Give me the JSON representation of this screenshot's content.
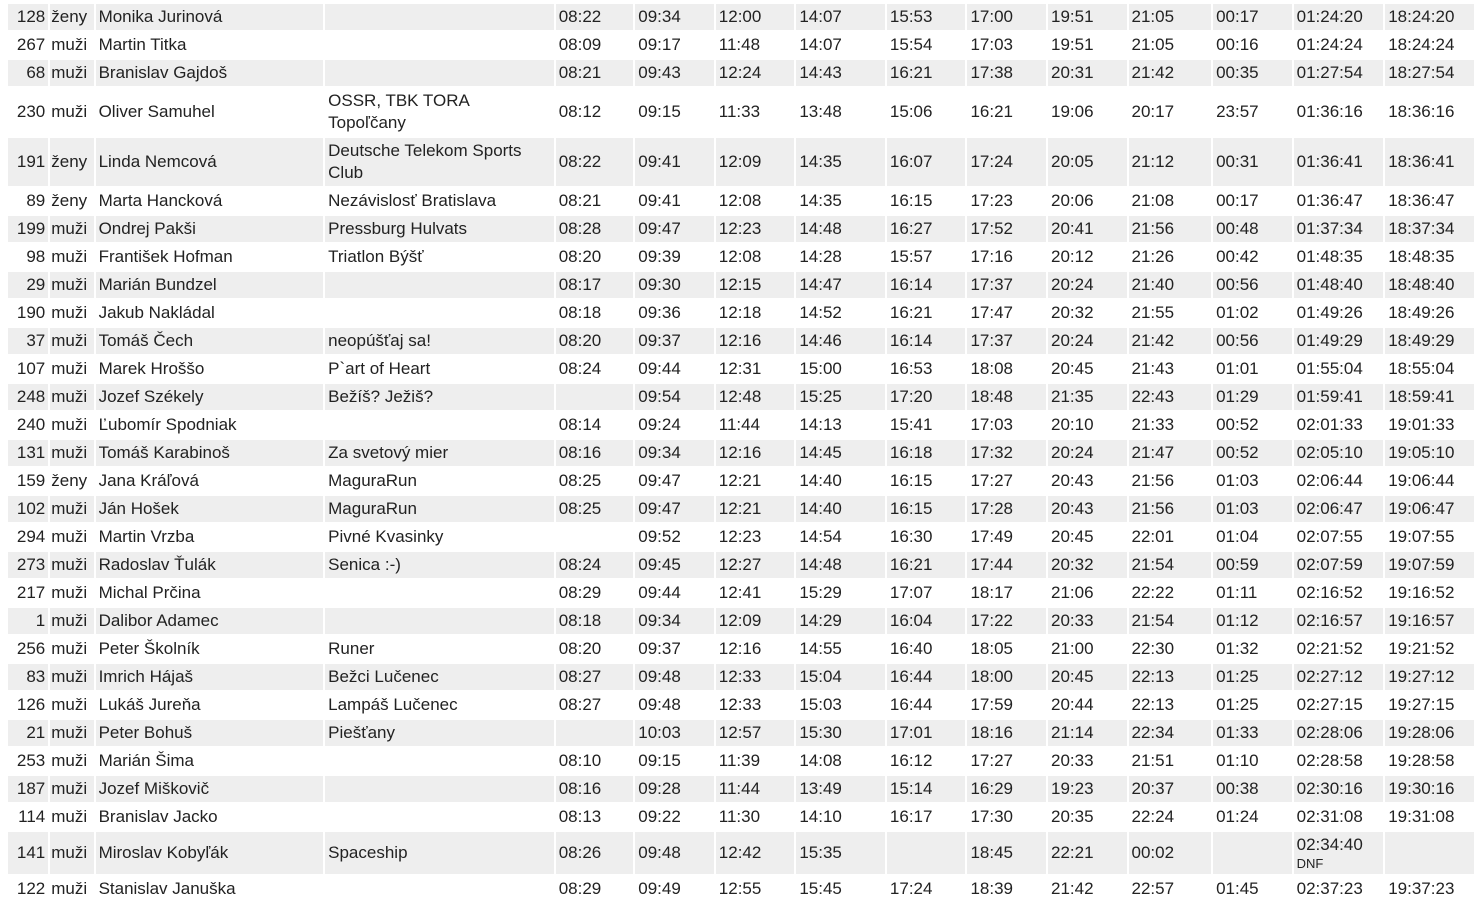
{
  "table": {
    "rows": [
      [
        "128",
        "ženy",
        "Monika Jurinová",
        null,
        "08:22",
        "09:34",
        "12:00",
        "14:07",
        "15:53",
        "17:00",
        "19:51",
        "21:05",
        "00:17",
        "01:24:20",
        "18:24:20"
      ],
      [
        "267",
        "muži",
        "Martin Titka",
        null,
        "08:09",
        "09:17",
        "11:48",
        "14:07",
        "15:54",
        "17:03",
        "19:51",
        "21:05",
        "00:16",
        "01:24:24",
        "18:24:24"
      ],
      [
        "68",
        "muži",
        "Branislav Gajdoš",
        null,
        "08:21",
        "09:43",
        "12:24",
        "14:43",
        "16:21",
        "17:38",
        "20:31",
        "21:42",
        "00:35",
        "01:27:54",
        "18:27:54"
      ],
      [
        "230",
        "muži",
        "Oliver Samuhel",
        "OSSR, TBK TORA Topoľčany",
        "08:12",
        "09:15",
        "11:33",
        "13:48",
        "15:06",
        "16:21",
        "19:06",
        "20:17",
        "23:57",
        "01:36:16",
        "18:36:16"
      ],
      [
        "191",
        "ženy",
        "Linda Nemcová",
        "Deutsche Telekom Sports Club",
        "08:22",
        "09:41",
        "12:09",
        "14:35",
        "16:07",
        "17:24",
        "20:05",
        "21:12",
        "00:31",
        "01:36:41",
        "18:36:41"
      ],
      [
        "89",
        "ženy",
        "Marta Hancková",
        "Nezávislosť Bratislava",
        "08:21",
        "09:41",
        "12:08",
        "14:35",
        "16:15",
        "17:23",
        "20:06",
        "21:08",
        "00:17",
        "01:36:47",
        "18:36:47"
      ],
      [
        "199",
        "muži",
        "Ondrej Pakši",
        "Pressburg Hulvats",
        "08:28",
        "09:47",
        "12:23",
        "14:48",
        "16:27",
        "17:52",
        "20:41",
        "21:56",
        "00:48",
        "01:37:34",
        "18:37:34"
      ],
      [
        "98",
        "muži",
        "František Hofman",
        "Triatlon Býšť",
        "08:20",
        "09:39",
        "12:08",
        "14:28",
        "15:57",
        "17:16",
        "20:12",
        "21:26",
        "00:42",
        "01:48:35",
        "18:48:35"
      ],
      [
        "29",
        "muži",
        "Marián Bundzel",
        null,
        "08:17",
        "09:30",
        "12:15",
        "14:47",
        "16:14",
        "17:37",
        "20:24",
        "21:40",
        "00:56",
        "01:48:40",
        "18:48:40"
      ],
      [
        "190",
        "muži",
        "Jakub Nakládal",
        null,
        "08:18",
        "09:36",
        "12:18",
        "14:52",
        "16:21",
        "17:47",
        "20:32",
        "21:55",
        "01:02",
        "01:49:26",
        "18:49:26"
      ],
      [
        "37",
        "muži",
        "Tomáš Čech",
        "neopúšťaj sa!",
        "08:20",
        "09:37",
        "12:16",
        "14:46",
        "16:14",
        "17:37",
        "20:24",
        "21:42",
        "00:56",
        "01:49:29",
        "18:49:29"
      ],
      [
        "107",
        "muži",
        "Marek Hroššo",
        "P`art of Heart",
        "08:24",
        "09:44",
        "12:31",
        "15:00",
        "16:53",
        "18:08",
        "20:45",
        "21:43",
        "01:01",
        "01:55:04",
        "18:55:04"
      ],
      [
        "248",
        "muži",
        "Jozef Székely",
        "Bežíš? Ježiš?",
        null,
        "09:54",
        "12:48",
        "15:25",
        "17:20",
        "18:48",
        "21:35",
        "22:43",
        "01:29",
        "01:59:41",
        "18:59:41"
      ],
      [
        "240",
        "muži",
        "Ľubomír Spodniak",
        null,
        "08:14",
        "09:24",
        "11:44",
        "14:13",
        "15:41",
        "17:03",
        "20:10",
        "21:33",
        "00:52",
        "02:01:33",
        "19:01:33"
      ],
      [
        "131",
        "muži",
        "Tomáš Karabinoš",
        "Za svetový mier",
        "08:16",
        "09:34",
        "12:16",
        "14:45",
        "16:18",
        "17:32",
        "20:24",
        "21:47",
        "00:52",
        "02:05:10",
        "19:05:10"
      ],
      [
        "159",
        "ženy",
        "Jana Kráľová",
        "MaguraRun",
        "08:25",
        "09:47",
        "12:21",
        "14:40",
        "16:15",
        "17:27",
        "20:43",
        "21:56",
        "01:03",
        "02:06:44",
        "19:06:44"
      ],
      [
        "102",
        "muži",
        "Ján Hošek",
        "MaguraRun",
        "08:25",
        "09:47",
        "12:21",
        "14:40",
        "16:15",
        "17:28",
        "20:43",
        "21:56",
        "01:03",
        "02:06:47",
        "19:06:47"
      ],
      [
        "294",
        "muži",
        "Martin Vrzba",
        "Pivné Kvasinky",
        null,
        "09:52",
        "12:23",
        "14:54",
        "16:30",
        "17:49",
        "20:45",
        "22:01",
        "01:04",
        "02:07:55",
        "19:07:55"
      ],
      [
        "273",
        "muži",
        "Radoslav Ťulák",
        "Senica :-)",
        "08:24",
        "09:45",
        "12:27",
        "14:48",
        "16:21",
        "17:44",
        "20:32",
        "21:54",
        "00:59",
        "02:07:59",
        "19:07:59"
      ],
      [
        "217",
        "muži",
        "Michal Prčina",
        null,
        "08:29",
        "09:44",
        "12:41",
        "15:29",
        "17:07",
        "18:17",
        "21:06",
        "22:22",
        "01:11",
        "02:16:52",
        "19:16:52"
      ],
      [
        "1",
        "muži",
        "Dalibor Adamec",
        null,
        "08:18",
        "09:34",
        "12:09",
        "14:29",
        "16:04",
        "17:22",
        "20:33",
        "21:54",
        "01:12",
        "02:16:57",
        "19:16:57"
      ],
      [
        "256",
        "muži",
        "Peter Školník",
        "Runer",
        "08:20",
        "09:37",
        "12:16",
        "14:55",
        "16:40",
        "18:05",
        "21:00",
        "22:30",
        "01:32",
        "02:21:52",
        "19:21:52"
      ],
      [
        "83",
        "muži",
        "Imrich Hájaš",
        "Bežci Lučenec",
        "08:27",
        "09:48",
        "12:33",
        "15:04",
        "16:44",
        "18:00",
        "20:45",
        "22:13",
        "01:25",
        "02:27:12",
        "19:27:12"
      ],
      [
        "126",
        "muži",
        "Lukáš Jureňa",
        "Lampáš Lučenec",
        "08:27",
        "09:48",
        "12:33",
        "15:03",
        "16:44",
        "17:59",
        "20:44",
        "22:13",
        "01:25",
        "02:27:15",
        "19:27:15"
      ],
      [
        "21",
        "muži",
        "Peter Bohuš",
        "Piešťany",
        null,
        "10:03",
        "12:57",
        "15:30",
        "17:01",
        "18:16",
        "21:14",
        "22:34",
        "01:33",
        "02:28:06",
        "19:28:06"
      ],
      [
        "253",
        "muži",
        "Marián Šima",
        null,
        "08:10",
        "09:15",
        "11:39",
        "14:08",
        "16:12",
        "17:27",
        "20:33",
        "21:51",
        "01:10",
        "02:28:58",
        "19:28:58"
      ],
      [
        "187",
        "muži",
        "Jozef Miškovič",
        null,
        "08:16",
        "09:28",
        "11:44",
        "13:49",
        "15:14",
        "16:29",
        "19:23",
        "20:37",
        "00:38",
        "02:30:16",
        "19:30:16"
      ],
      [
        "114",
        "muži",
        "Branislav Jacko",
        null,
        "08:13",
        "09:22",
        "11:30",
        "14:10",
        "16:17",
        "17:30",
        "20:35",
        "22:24",
        "01:24",
        "02:31:08",
        "19:31:08"
      ],
      [
        "141",
        "muži",
        "Miroslav Kobyľák",
        "Spaceship",
        "08:26",
        "09:48",
        "12:42",
        "15:35",
        null,
        "18:45",
        "22:21",
        "00:02",
        null,
        {
          "text": "02:34:40",
          "note": "DNF"
        },
        null
      ],
      [
        "122",
        "muži",
        "Stanislav Januška",
        null,
        "08:29",
        "09:49",
        "12:55",
        "15:45",
        "17:24",
        "18:39",
        "21:42",
        "22:57",
        "01:45",
        "02:37:23",
        "19:37:23"
      ]
    ]
  }
}
